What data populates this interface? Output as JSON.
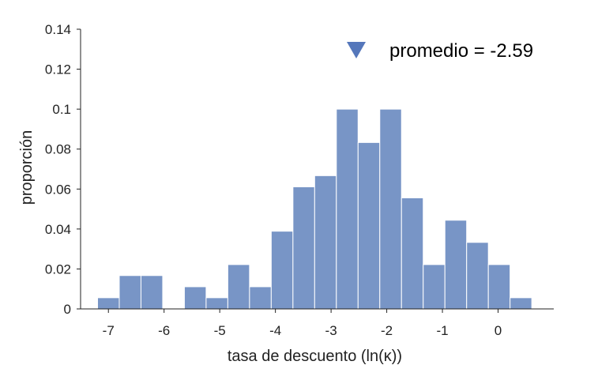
{
  "chart_data": {
    "type": "bar",
    "xlabel": "tasa de descuento (ln(κ))",
    "ylabel": "proporción",
    "ylim": [
      0,
      0.14
    ],
    "xlim": [
      -7.5,
      1.0
    ],
    "yticks": [
      0,
      0.02,
      0.04,
      0.06,
      0.08,
      0.1,
      0.12,
      0.14
    ],
    "ytick_labels": [
      "0",
      "0.02",
      "0.04",
      "0.06",
      "0.08",
      "0.1",
      "0.12",
      "0.14"
    ],
    "xticks": [
      -7,
      -6,
      -5,
      -4,
      -3,
      -2,
      -1,
      0
    ],
    "xtick_labels": [
      "-7",
      "-6",
      "-5",
      "-4",
      "-3",
      "-2",
      "-1",
      "0"
    ],
    "bin_width": 0.39,
    "bin_centers": [
      -7.0,
      -6.61,
      -6.22,
      -5.83,
      -5.44,
      -5.05,
      -4.66,
      -4.27,
      -3.88,
      -3.49,
      -3.1,
      -2.71,
      -2.32,
      -1.93,
      -1.54,
      -1.15,
      -0.76,
      -0.37,
      0.02,
      0.41
    ],
    "values": [
      0.0056,
      0.0167,
      0.0167,
      0,
      0.0111,
      0.0056,
      0.0222,
      0.0111,
      0.0389,
      0.0611,
      0.0667,
      0.1,
      0.0833,
      0.1,
      0.0556,
      0.0222,
      0.0444,
      0.0333,
      0.0222,
      0.0056
    ],
    "bar_color": "#7895c6",
    "mean_marker": {
      "value": -2.59,
      "color": "#5577bb",
      "shape": "triangle-down"
    },
    "legend": {
      "label": "promedio = -2.59",
      "placement": "top-right"
    },
    "grid": false
  }
}
